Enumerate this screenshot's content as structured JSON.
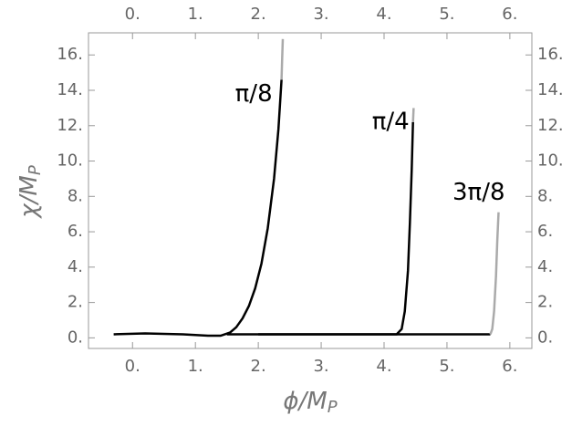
{
  "chart_data": {
    "type": "line",
    "x_label": {
      "text": "ϕ/M",
      "sub": "P"
    },
    "y_label": {
      "text": "χ/M",
      "sub": "P"
    },
    "xlim": [
      -0.7,
      6.35
    ],
    "ylim": [
      -0.6,
      17.25
    ],
    "xticks": [
      {
        "value": 0,
        "label": "0."
      },
      {
        "value": 1,
        "label": "1."
      },
      {
        "value": 2,
        "label": "2."
      },
      {
        "value": 3,
        "label": "3."
      },
      {
        "value": 4,
        "label": "4."
      },
      {
        "value": 5,
        "label": "5."
      },
      {
        "value": 6,
        "label": "6."
      }
    ],
    "yticks": [
      {
        "value": 0,
        "label": "0."
      },
      {
        "value": 2,
        "label": "2."
      },
      {
        "value": 4,
        "label": "4."
      },
      {
        "value": 6,
        "label": "6."
      },
      {
        "value": 8,
        "label": "8."
      },
      {
        "value": 10,
        "label": "10."
      },
      {
        "value": 12,
        "label": "12."
      },
      {
        "value": 14,
        "label": "14."
      },
      {
        "value": 16,
        "label": "16."
      }
    ],
    "series": [
      {
        "name": "π/8",
        "color": "#000000",
        "x": [
          -0.3,
          0.2,
          0.8,
          1.2,
          1.4,
          1.55,
          1.65,
          1.75,
          1.85,
          1.95,
          2.05,
          2.15,
          2.25,
          2.32,
          2.37
        ],
        "values": [
          0.2,
          0.25,
          0.2,
          0.12,
          0.12,
          0.3,
          0.6,
          1.1,
          1.8,
          2.8,
          4.2,
          6.2,
          9.0,
          11.8,
          14.6
        ]
      },
      {
        "color": "#aaaaaa",
        "x": [
          2.37,
          2.38,
          2.39
        ],
        "values": [
          14.6,
          15.8,
          16.9
        ]
      },
      {
        "name": "π/4",
        "color": "#000000",
        "x": [
          1.5,
          2.5,
          3.5,
          4.2,
          4.28,
          4.33,
          4.38,
          4.41,
          4.44,
          4.46
        ],
        "values": [
          0.2,
          0.2,
          0.2,
          0.2,
          0.5,
          1.5,
          3.8,
          6.5,
          9.5,
          12.2
        ]
      },
      {
        "color": "#aaaaaa",
        "x": [
          4.46,
          4.47
        ],
        "values": [
          12.2,
          13.0
        ]
      },
      {
        "name": "3π/8",
        "color": "#000000",
        "x": [
          2.0,
          3.5,
          4.5,
          5.69
        ],
        "values": [
          0.2,
          0.2,
          0.2,
          0.2
        ]
      },
      {
        "color": "#aaaaaa",
        "x": [
          5.69,
          5.72,
          5.75,
          5.78,
          5.8,
          5.82
        ],
        "values": [
          0.2,
          0.5,
          1.5,
          3.5,
          5.5,
          7.1
        ]
      }
    ]
  }
}
